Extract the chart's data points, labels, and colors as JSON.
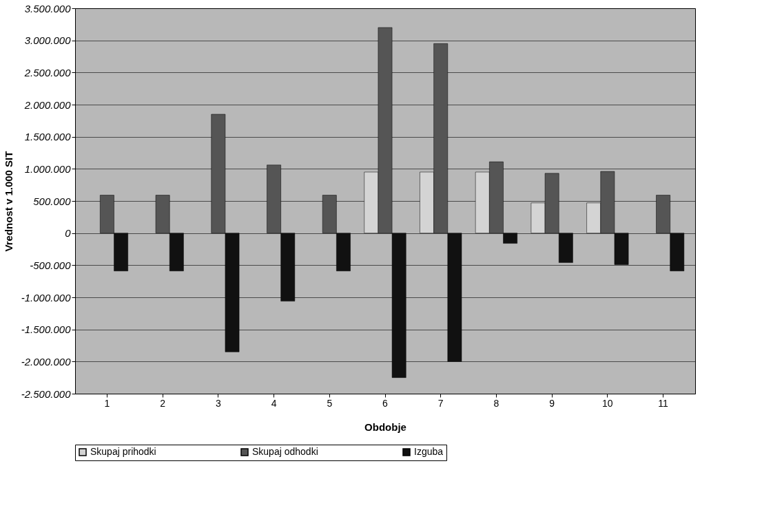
{
  "chart_data": {
    "type": "bar",
    "xlabel": "Obdobje",
    "ylabel": "Vrednost v 1.000 SIT",
    "categories": [
      "1",
      "2",
      "3",
      "4",
      "5",
      "6",
      "7",
      "8",
      "9",
      "10",
      "11"
    ],
    "series": [
      {
        "name": "Skupaj prihodki",
        "color": "#d4d4d4",
        "values": [
          null,
          null,
          null,
          null,
          null,
          950000,
          950000,
          950000,
          470000,
          470000,
          null
        ]
      },
      {
        "name": "Skupaj odhodki",
        "color": "#555555",
        "values": [
          590000,
          590000,
          1850000,
          1060000,
          590000,
          3200000,
          2950000,
          1110000,
          930000,
          960000,
          590000
        ]
      },
      {
        "name": "Izguba",
        "color": "#111111",
        "values": [
          -590000,
          -590000,
          -1850000,
          -1060000,
          -590000,
          -2250000,
          -2000000,
          -160000,
          -460000,
          -490000,
          -590000
        ]
      }
    ],
    "ylim": [
      -2500000,
      3500000
    ],
    "yticks": [
      {
        "value": -2500000,
        "label": "-2.500.000"
      },
      {
        "value": -2000000,
        "label": "-2.000.000"
      },
      {
        "value": -1500000,
        "label": "-1.500.000"
      },
      {
        "value": -1000000,
        "label": "-1.000.000"
      },
      {
        "value": -500000,
        "label": "-500.000"
      },
      0,
      {
        "value": 500000,
        "label": "500.000"
      },
      {
        "value": 1000000,
        "label": "1.000.000"
      },
      {
        "value": 1500000,
        "label": "1.500.000"
      },
      {
        "value": 2000000,
        "label": "2.000.000"
      },
      {
        "value": 2500000,
        "label": "2.500.000"
      },
      {
        "value": 3000000,
        "label": "3.000.000"
      },
      {
        "value": 3500000,
        "label": "3.500.000"
      }
    ],
    "grid": "y",
    "legend": "bottom"
  }
}
